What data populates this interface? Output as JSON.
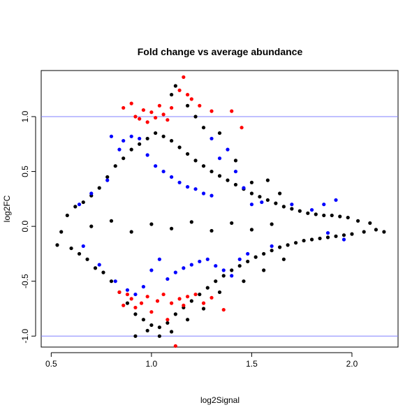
{
  "chart_data": {
    "type": "scatter",
    "title": "Fold change vs average abundance",
    "xlabel": "log2Signal",
    "ylabel": "log2FC",
    "xlim": [
      0.45,
      2.23
    ],
    "ylim": [
      -1.1,
      1.42
    ],
    "x_ticks": [
      0.5,
      1.0,
      1.5,
      2.0
    ],
    "x_tick_labels": [
      "0.5",
      "1.0",
      "1.5",
      "2.0"
    ],
    "y_ticks": [
      -1.0,
      -0.5,
      0.0,
      0.5,
      1.0
    ],
    "y_tick_labels": [
      "-1.0",
      "-0.5",
      "0.0",
      "0.5",
      "1.0"
    ],
    "grid": false,
    "reference_lines": [
      {
        "axis": "y",
        "value": 1.0,
        "color": "#8080ff"
      },
      {
        "axis": "y",
        "value": -1.0,
        "color": "#8080ff"
      }
    ],
    "series": [
      {
        "color": "#000000",
        "points": [
          [
            0.53,
            -0.17
          ],
          [
            0.55,
            -0.05
          ],
          [
            0.58,
            0.1
          ],
          [
            0.6,
            -0.2
          ],
          [
            0.62,
            0.18
          ],
          [
            0.64,
            -0.25
          ],
          [
            0.66,
            0.22
          ],
          [
            0.68,
            -0.3
          ],
          [
            0.7,
            0.28
          ],
          [
            0.72,
            -0.38
          ],
          [
            0.74,
            0.35
          ],
          [
            0.76,
            -0.42
          ],
          [
            0.78,
            0.45
          ],
          [
            0.8,
            -0.5
          ],
          [
            0.82,
            0.55
          ],
          [
            0.84,
            -0.6
          ],
          [
            0.86,
            0.62
          ],
          [
            0.88,
            -0.7
          ],
          [
            0.9,
            0.7
          ],
          [
            0.92,
            -0.8
          ],
          [
            0.94,
            0.75
          ],
          [
            0.96,
            -0.85
          ],
          [
            0.98,
            0.8
          ],
          [
            1.0,
            -0.9
          ],
          [
            1.02,
            0.85
          ],
          [
            1.04,
            -0.92
          ],
          [
            1.06,
            0.82
          ],
          [
            1.08,
            -0.88
          ],
          [
            1.1,
            0.78
          ],
          [
            1.12,
            -0.8
          ],
          [
            1.14,
            0.72
          ],
          [
            1.16,
            -0.74
          ],
          [
            1.18,
            0.66
          ],
          [
            1.2,
            -0.68
          ],
          [
            1.22,
            0.6
          ],
          [
            1.24,
            -0.62
          ],
          [
            1.26,
            0.55
          ],
          [
            1.28,
            -0.56
          ],
          [
            1.3,
            0.5
          ],
          [
            1.32,
            -0.5
          ],
          [
            1.34,
            0.46
          ],
          [
            1.36,
            -0.45
          ],
          [
            1.38,
            0.42
          ],
          [
            1.4,
            -0.4
          ],
          [
            1.42,
            0.38
          ],
          [
            1.44,
            -0.36
          ],
          [
            1.46,
            0.34
          ],
          [
            1.48,
            -0.32
          ],
          [
            1.5,
            0.3
          ],
          [
            1.52,
            -0.28
          ],
          [
            1.54,
            0.27
          ],
          [
            1.56,
            -0.25
          ],
          [
            1.58,
            0.24
          ],
          [
            1.6,
            -0.22
          ],
          [
            1.62,
            0.21
          ],
          [
            1.64,
            -0.19
          ],
          [
            1.66,
            0.18
          ],
          [
            1.68,
            -0.17
          ],
          [
            1.7,
            0.16
          ],
          [
            1.72,
            -0.15
          ],
          [
            1.74,
            0.14
          ],
          [
            1.76,
            -0.13
          ],
          [
            1.78,
            0.12
          ],
          [
            1.8,
            -0.12
          ],
          [
            1.82,
            0.11
          ],
          [
            1.84,
            -0.11
          ],
          [
            1.86,
            0.1
          ],
          [
            1.88,
            -0.1
          ],
          [
            1.9,
            0.1
          ],
          [
            1.92,
            -0.09
          ],
          [
            1.94,
            0.09
          ],
          [
            1.96,
            -0.08
          ],
          [
            1.98,
            0.08
          ],
          [
            2.0,
            -0.07
          ],
          [
            2.03,
            0.05
          ],
          [
            2.06,
            -0.05
          ],
          [
            2.09,
            0.03
          ],
          [
            2.12,
            -0.03
          ],
          [
            2.16,
            -0.05
          ],
          [
            1.12,
            1.28
          ],
          [
            1.1,
            1.2
          ],
          [
            1.18,
            1.1
          ],
          [
            1.22,
            1.0
          ],
          [
            1.26,
            0.9
          ],
          [
            1.34,
            0.85
          ],
          [
            1.42,
            0.6
          ],
          [
            1.5,
            0.4
          ],
          [
            1.58,
            0.42
          ],
          [
            1.64,
            0.3
          ],
          [
            0.92,
            -1.0
          ],
          [
            0.98,
            -0.95
          ],
          [
            1.04,
            -1.0
          ],
          [
            1.1,
            -0.96
          ],
          [
            1.18,
            -0.85
          ],
          [
            1.26,
            -0.75
          ],
          [
            1.34,
            -0.6
          ],
          [
            1.46,
            -0.5
          ],
          [
            1.56,
            -0.4
          ],
          [
            1.66,
            -0.3
          ],
          [
            0.7,
            0.0
          ],
          [
            0.8,
            0.05
          ],
          [
            0.9,
            -0.05
          ],
          [
            1.0,
            0.02
          ],
          [
            1.1,
            -0.02
          ],
          [
            1.2,
            0.04
          ],
          [
            1.3,
            -0.04
          ],
          [
            1.4,
            0.03
          ],
          [
            1.5,
            -0.03
          ],
          [
            1.6,
            0.02
          ]
        ]
      },
      {
        "color": "#0000ff",
        "points": [
          [
            0.64,
            0.2
          ],
          [
            0.66,
            -0.18
          ],
          [
            0.7,
            0.3
          ],
          [
            0.74,
            -0.35
          ],
          [
            0.78,
            0.42
          ],
          [
            0.82,
            -0.5
          ],
          [
            0.84,
            0.7
          ],
          [
            0.86,
            0.78
          ],
          [
            0.88,
            -0.58
          ],
          [
            0.9,
            0.82
          ],
          [
            0.92,
            -0.62
          ],
          [
            0.94,
            0.8
          ],
          [
            0.96,
            -0.55
          ],
          [
            0.98,
            0.65
          ],
          [
            1.0,
            -0.4
          ],
          [
            1.02,
            0.55
          ],
          [
            1.04,
            -0.3
          ],
          [
            1.06,
            0.5
          ],
          [
            1.08,
            -0.48
          ],
          [
            1.1,
            0.45
          ],
          [
            1.12,
            -0.42
          ],
          [
            1.14,
            0.4
          ],
          [
            1.16,
            -0.38
          ],
          [
            1.18,
            0.36
          ],
          [
            1.2,
            -0.35
          ],
          [
            1.22,
            0.34
          ],
          [
            1.24,
            -0.32
          ],
          [
            1.26,
            0.3
          ],
          [
            1.28,
            -0.3
          ],
          [
            1.3,
            0.28
          ],
          [
            1.32,
            -0.36
          ],
          [
            1.34,
            0.62
          ],
          [
            1.36,
            -0.4
          ],
          [
            1.38,
            0.7
          ],
          [
            1.4,
            -0.45
          ],
          [
            1.42,
            0.5
          ],
          [
            1.44,
            -0.3
          ],
          [
            1.46,
            0.35
          ],
          [
            1.48,
            -0.25
          ],
          [
            1.5,
            0.2
          ],
          [
            1.55,
            0.22
          ],
          [
            1.6,
            -0.18
          ],
          [
            1.7,
            0.2
          ],
          [
            1.8,
            0.15
          ],
          [
            1.86,
            0.2
          ],
          [
            1.92,
            0.24
          ],
          [
            1.88,
            -0.06
          ],
          [
            1.96,
            -0.12
          ],
          [
            1.3,
            0.8
          ],
          [
            0.8,
            0.82
          ]
        ]
      },
      {
        "color": "#ff0000",
        "points": [
          [
            0.86,
            1.08
          ],
          [
            0.9,
            1.12
          ],
          [
            0.92,
            1.0
          ],
          [
            0.94,
            0.98
          ],
          [
            0.96,
            1.06
          ],
          [
            0.98,
            0.95
          ],
          [
            1.0,
            1.04
          ],
          [
            1.02,
            0.99
          ],
          [
            1.04,
            1.1
          ],
          [
            1.06,
            1.02
          ],
          [
            1.08,
            0.97
          ],
          [
            1.1,
            1.08
          ],
          [
            1.14,
            1.24
          ],
          [
            1.16,
            1.36
          ],
          [
            1.18,
            1.2
          ],
          [
            1.2,
            1.16
          ],
          [
            1.24,
            1.1
          ],
          [
            1.3,
            1.05
          ],
          [
            1.4,
            1.05
          ],
          [
            1.45,
            0.9
          ],
          [
            0.84,
            -0.6
          ],
          [
            0.86,
            -0.72
          ],
          [
            0.88,
            -0.62
          ],
          [
            0.9,
            -0.66
          ],
          [
            0.92,
            -0.74
          ],
          [
            0.95,
            -0.7
          ],
          [
            0.98,
            -0.64
          ],
          [
            1.0,
            -0.78
          ],
          [
            1.03,
            -0.68
          ],
          [
            1.06,
            -0.62
          ],
          [
            1.08,
            -0.85
          ],
          [
            1.1,
            -0.7
          ],
          [
            1.12,
            -1.09
          ],
          [
            1.14,
            -0.66
          ],
          [
            1.16,
            -0.72
          ],
          [
            1.18,
            -0.64
          ],
          [
            1.22,
            -0.62
          ],
          [
            1.26,
            -0.7
          ],
          [
            1.3,
            -0.65
          ],
          [
            1.36,
            -0.76
          ]
        ]
      }
    ]
  }
}
